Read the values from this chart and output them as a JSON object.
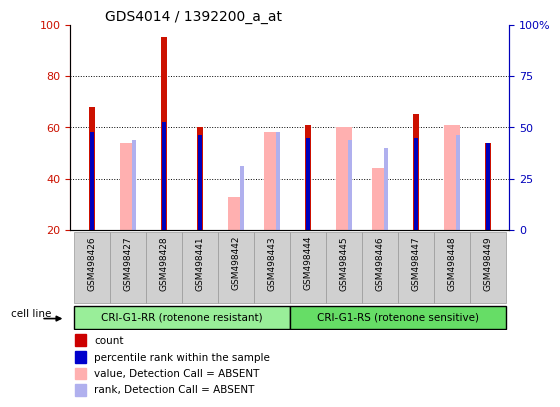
{
  "title": "GDS4014 / 1392200_a_at",
  "samples": [
    "GSM498426",
    "GSM498427",
    "GSM498428",
    "GSM498441",
    "GSM498442",
    "GSM498443",
    "GSM498444",
    "GSM498445",
    "GSM498446",
    "GSM498447",
    "GSM498448",
    "GSM498449"
  ],
  "red_bars": [
    68,
    0,
    95,
    60,
    0,
    0,
    61,
    0,
    0,
    65,
    0,
    54
  ],
  "pink_bars": [
    0,
    54,
    0,
    0,
    33,
    58,
    0,
    60,
    44,
    0,
    61,
    0
  ],
  "blue_squares": [
    58,
    0,
    62,
    57,
    0,
    0,
    56,
    0,
    0,
    56,
    0,
    54
  ],
  "lavender_squares": [
    0,
    55,
    0,
    0,
    45,
    58,
    0,
    55,
    52,
    0,
    57,
    0
  ],
  "ylim_left": [
    20,
    100
  ],
  "ylim_right": [
    0,
    100
  ],
  "yticks_left": [
    20,
    40,
    60,
    80,
    100
  ],
  "yticks_right": [
    0,
    25,
    50,
    75,
    100
  ],
  "ytick_labels_left": [
    "20",
    "40",
    "60",
    "80",
    "100"
  ],
  "ytick_labels_right": [
    "0",
    "25",
    "50",
    "75",
    "100%"
  ],
  "group1_label": "CRI-G1-RR (rotenone resistant)",
  "group2_label": "CRI-G1-RS (rotenone sensitive)",
  "cell_line_label": "cell line",
  "legend_items": [
    {
      "color": "#cc0000",
      "label": "count"
    },
    {
      "color": "#0000cc",
      "label": "percentile rank within the sample"
    },
    {
      "color": "#ffb0b0",
      "label": "value, Detection Call = ABSENT"
    },
    {
      "color": "#b0b0ee",
      "label": "rank, Detection Call = ABSENT"
    }
  ],
  "red_color": "#cc1100",
  "pink_color": "#ffb0b0",
  "blue_color": "#0000bb",
  "lavender_color": "#b0b0ee",
  "group1_bg": "#99ee99",
  "group2_bg": "#66dd66",
  "tick_bg": "#d0d0d0",
  "left_axis_color": "#cc1100",
  "right_axis_color": "#0000bb"
}
